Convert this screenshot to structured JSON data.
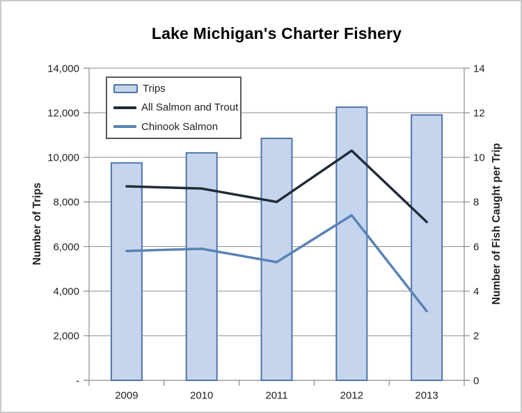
{
  "chart_data": {
    "type": "bar+line combo",
    "title": "Lake Michigan's Charter Fishery",
    "categories": [
      "2009",
      "2010",
      "2011",
      "2012",
      "2013"
    ],
    "series": [
      {
        "name": "Trips",
        "type": "bar",
        "axis": "left",
        "values": [
          9750,
          10200,
          10850,
          12250,
          11900
        ],
        "fill": "#C6D5EE",
        "stroke": "#4E75A8"
      },
      {
        "name": "All Salmon and Trout",
        "type": "line",
        "axis": "right",
        "values": [
          8.7,
          8.6,
          8.0,
          10.3,
          7.1
        ],
        "color": "#222B38"
      },
      {
        "name": "Chinook Salmon",
        "type": "line",
        "axis": "right",
        "values": [
          5.8,
          5.9,
          5.3,
          7.4,
          3.1
        ],
        "color": "#5883B5"
      }
    ],
    "left_axis": {
      "title": "Number of Trips",
      "min": 0,
      "max": 14000,
      "step": 2000,
      "tick_labels": [
        "14,000",
        "12,000",
        "10,000",
        "8,000",
        "6,000",
        "4,000",
        "2,000",
        "-"
      ],
      "tick_values": [
        14000,
        12000,
        10000,
        8000,
        6000,
        4000,
        2000,
        0
      ]
    },
    "right_axis": {
      "title": "Number of Fish Caught per Trip",
      "min": 0,
      "max": 14,
      "step": 2,
      "tick_labels": [
        "14",
        "12",
        "10",
        "8",
        "6",
        "4",
        "2",
        "0"
      ],
      "tick_values": [
        14,
        12,
        10,
        8,
        6,
        4,
        2,
        0
      ]
    },
    "grid": true,
    "legend_position": "top-left-inside"
  },
  "colors": {
    "grid_line": "#8A8A8A",
    "axis_line": "#8A8A8A",
    "tick_text": "#1f1f1f",
    "frame_border": "#c9c9c9",
    "background": "#ffffff"
  }
}
